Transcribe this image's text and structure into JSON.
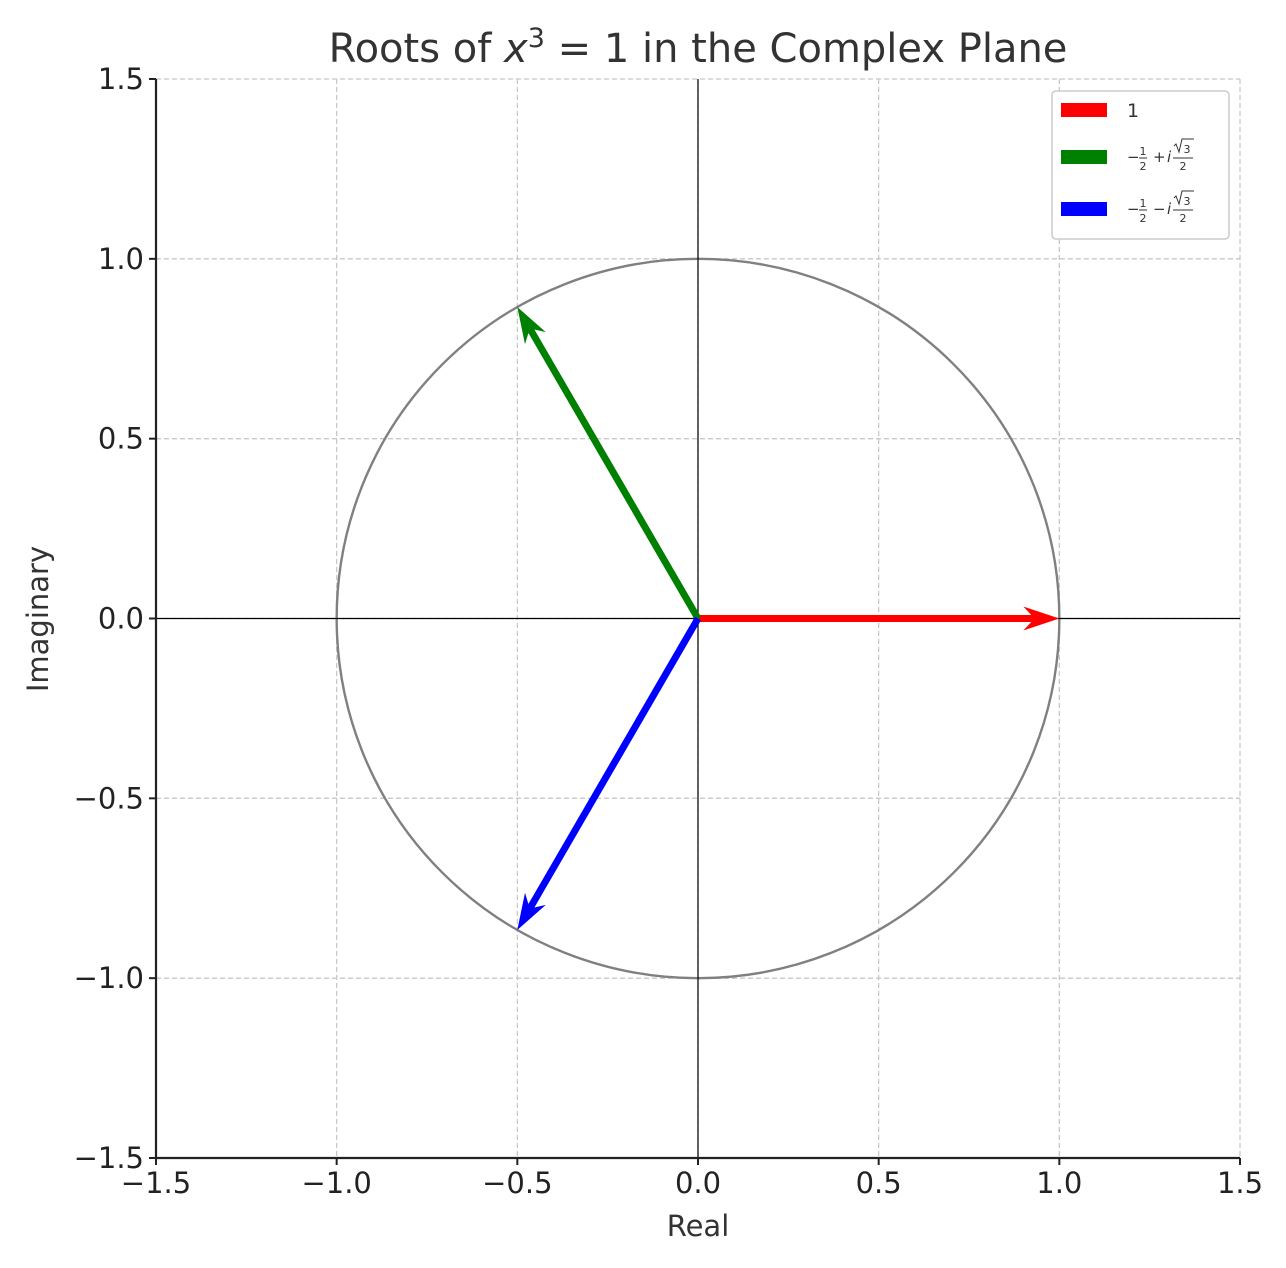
{
  "chart_data": {
    "type": "vector",
    "title": "Roots of x³ = 1 in the Complex Plane",
    "title_parts": {
      "before": "Roots of ",
      "var": "x",
      "exp": "3",
      "after": " = 1 in the Complex Plane"
    },
    "xlabel": "Real",
    "ylabel": "Imaginary",
    "xlim": [
      -1.5,
      1.5
    ],
    "ylim": [
      -1.5,
      1.5
    ],
    "xticks": [
      -1.5,
      -1.0,
      -0.5,
      0.0,
      0.5,
      1.0,
      1.5
    ],
    "yticks": [
      -1.5,
      -1.0,
      -0.5,
      0.0,
      0.5,
      1.0,
      1.5
    ],
    "xtick_labels": [
      "−1.5",
      "−1.0",
      "−0.5",
      "0.0",
      "0.5",
      "1.0",
      "1.5"
    ],
    "ytick_labels": [
      "−1.5",
      "−1.0",
      "−0.5",
      "0.0",
      "0.5",
      "1.0",
      "1.5"
    ],
    "grid": true,
    "unit_circle": {
      "center": [
        0,
        0
      ],
      "radius": 1,
      "color": "#808080"
    },
    "axis_lines": {
      "x": 0,
      "y": 0,
      "color": "#000000"
    },
    "legend_position": "top-right",
    "series": [
      {
        "name": "1",
        "legend": {
          "type": "plain",
          "text": "1"
        },
        "origin": [
          0,
          0
        ],
        "vector": [
          1,
          0
        ],
        "color": "#ff0000"
      },
      {
        "name": "−1/2 + i√3/2",
        "legend": {
          "type": "root",
          "sign": "+"
        },
        "origin": [
          0,
          0
        ],
        "vector": [
          -0.5,
          0.866
        ],
        "color": "#008000"
      },
      {
        "name": "−1/2 − i√3/2",
        "legend": {
          "type": "root",
          "sign": "−"
        },
        "origin": [
          0,
          0
        ],
        "vector": [
          -0.5,
          -0.866
        ],
        "color": "#0000ff"
      }
    ]
  }
}
